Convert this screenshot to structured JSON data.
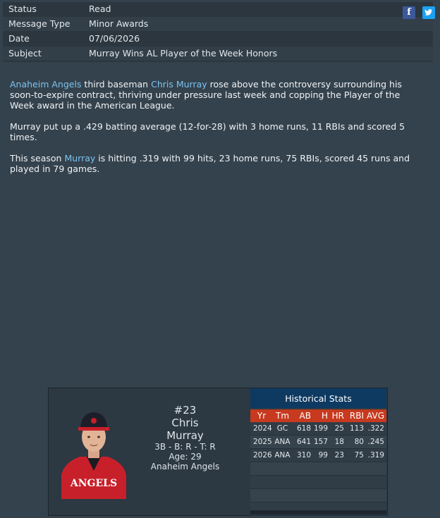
{
  "header": {
    "rows": [
      {
        "label": "Status",
        "value": "Read"
      },
      {
        "label": "Message Type",
        "value": "Minor Awards"
      },
      {
        "label": "Date",
        "value": "07/06/2026"
      },
      {
        "label": "Subject",
        "value": "Murray Wins AL Player of the Week Honors"
      }
    ],
    "facebook_glyph": "f",
    "twitter_glyph": "t"
  },
  "article": {
    "p1_link1": "Anaheim Angels",
    "p1_text1": " third baseman ",
    "p1_link2": "Chris Murray",
    "p1_text2": " rose above the controversy surrounding his soon-to-expire contract, thriving under pressure last week and copping the Player of the Week award in the American League.",
    "p2": "Murray put up a .429 batting average (12-for-28) with 3 home runs, 11 RBIs and scored 5 times.",
    "p3_text1": "This season ",
    "p3_link": "Murray",
    "p3_text2": " is hitting .319 with 99 hits, 23 home runs, 75 RBIs, scored 45 runs and played in 79 games."
  },
  "player": {
    "number": "#23",
    "first_name": "Chris",
    "last_name": "Murray",
    "bats_throws": "3B - B: R - T: R",
    "age": "Age: 29",
    "team": "Anaheim Angels",
    "jersey_text": "ANGELS"
  },
  "stats": {
    "title": "Historical Stats",
    "headers": {
      "yr": "Yr",
      "tm": "Tm",
      "ab": "AB",
      "h": "H",
      "hr": "HR",
      "rbi": "RBI",
      "avg": "AVG"
    },
    "rows": [
      {
        "yr": "2024",
        "tm": "GC",
        "ab": "618",
        "h": "199",
        "hr": "25",
        "rbi": "113",
        "avg": ".322"
      },
      {
        "yr": "2025",
        "tm": "ANA",
        "ab": "641",
        "h": "157",
        "hr": "18",
        "rbi": "80",
        "avg": ".245"
      },
      {
        "yr": "2026",
        "tm": "ANA",
        "ab": "310",
        "h": "99",
        "hr": "23",
        "rbi": "75",
        "avg": ".319"
      }
    ]
  },
  "colors": {
    "background": "#34424d",
    "link": "#7cc3f0",
    "stats_title_bg": "#0e3a62",
    "stats_header_bg": "#c73a1f",
    "jersey_red": "#c8202a"
  }
}
